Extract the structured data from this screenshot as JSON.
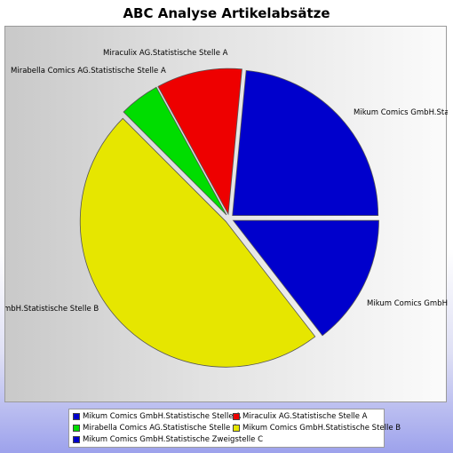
{
  "chart_data": {
    "type": "pie",
    "title": "ABC Analyse Artikelabsätze",
    "slices": [
      {
        "name": "Mikum Comics GmbH.Statistische Stelle A",
        "value": 23.5,
        "color": "#0000cc",
        "label": "Mikum Comics GmbH.Stati",
        "exploded": true
      },
      {
        "name": "Mikum Comics GmbH.Statistische Zweigstelle C",
        "value": 14.5,
        "color": "#0000cc",
        "label": "Mikum Comics GmbH.S",
        "exploded": true
      },
      {
        "name": "Mikum Comics GmbH.Statistische Stelle B",
        "value": 48.0,
        "color": "#e6e600",
        "label": "mbH.Statistische Stelle B",
        "exploded": true
      },
      {
        "name": "Mirabella Comics AG.Statistische Stelle A",
        "value": 4.5,
        "color": "#00dd00",
        "label": "Mirabella Comics AG.Statistische Stelle A",
        "exploded": true
      },
      {
        "name": "Miraculix AG.Statistische Stelle A",
        "value": 9.5,
        "color": "#ee0000",
        "label": "Miraculix AG.Statistische Stelle A",
        "exploded": true
      }
    ],
    "legend": [
      [
        "Mikum Comics GmbH.Statistische Stelle A",
        "Miraculix AG.Statistische Stelle A"
      ],
      [
        "Mirabella Comics AG.Statistische Stelle A",
        "Mikum Comics GmbH.Statistische Stelle B"
      ],
      [
        "Mikum Comics GmbH.Statistische Zweigstelle C"
      ]
    ],
    "legend_placement": "bottom"
  }
}
